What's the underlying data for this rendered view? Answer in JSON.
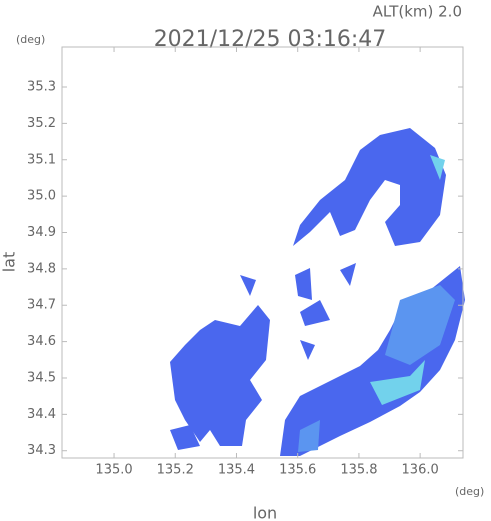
{
  "chart_data": {
    "type": "image",
    "title": "2021/12/25 03:16:47",
    "subtitle": "ALT(km) 2.0",
    "y_unit": "(deg)",
    "x_unit": "(deg)",
    "x_label": "lon",
    "y_label": "lat",
    "xlim": [
      134.83,
      136.14
    ],
    "ylim": [
      34.28,
      35.41
    ],
    "xticks": [
      {
        "value": 135.0,
        "label": "135.0"
      },
      135.2,
      135.4,
      135.6,
      135.8,
      {
        "value": 136.0,
        "label": "136.0"
      }
    ],
    "yticks": [
      34.3,
      34.4,
      34.5,
      34.6,
      34.7,
      34.8,
      34.9,
      {
        "value": 35.0,
        "label": "35.0"
      },
      35.1,
      35.2,
      35.3
    ]
  }
}
